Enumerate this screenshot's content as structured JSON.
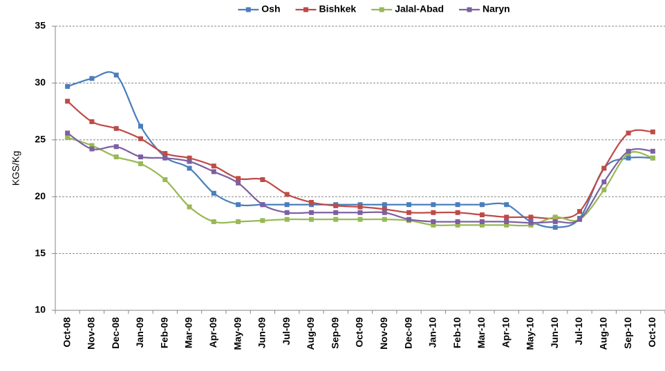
{
  "chart_data": {
    "type": "line",
    "y_label": "KGS/Kg",
    "categories": [
      "Oct-08",
      "Nov-08",
      "Dec-08",
      "Jan-09",
      "Feb-09",
      "Mar-09",
      "Apr-09",
      "May-09",
      "Jun-09",
      "Jul-09",
      "Aug-09",
      "Sep-09",
      "Oct-09",
      "Nov-09",
      "Dec-09",
      "Jan-10",
      "Feb-10",
      "Mar-10",
      "Apr-10",
      "May-10",
      "Jun-10",
      "Jul-10",
      "Aug-10",
      "Sep-10",
      "Oct-10"
    ],
    "series": [
      {
        "name": "Osh",
        "color": "#4a7ebb",
        "values": [
          29.7,
          30.4,
          30.7,
          26.2,
          23.5,
          22.5,
          20.3,
          19.3,
          19.3,
          19.3,
          19.3,
          19.3,
          19.3,
          19.3,
          19.3,
          19.3,
          19.3,
          19.3,
          19.3,
          17.8,
          17.3,
          18.1,
          22.5,
          23.4,
          23.4
        ]
      },
      {
        "name": "Bishkek",
        "color": "#be4b48",
        "values": [
          28.4,
          26.6,
          26.0,
          25.1,
          23.8,
          23.4,
          22.7,
          21.6,
          21.5,
          20.2,
          19.5,
          19.2,
          19.1,
          18.9,
          18.6,
          18.6,
          18.6,
          18.4,
          18.2,
          18.2,
          18.1,
          18.7,
          22.5,
          25.6,
          25.7
        ]
      },
      {
        "name": "Jalal-Abad",
        "color": "#98b954",
        "values": [
          25.2,
          24.5,
          23.5,
          22.9,
          21.5,
          19.1,
          17.8,
          17.8,
          17.9,
          18.0,
          18.0,
          18.0,
          18.0,
          18.0,
          17.9,
          17.5,
          17.5,
          17.5,
          17.5,
          17.5,
          18.2,
          18.0,
          20.6,
          23.8,
          23.4
        ]
      },
      {
        "name": "Naryn",
        "color": "#7d60a0",
        "values": [
          25.6,
          24.2,
          24.4,
          23.5,
          23.4,
          23.1,
          22.2,
          21.2,
          19.3,
          18.6,
          18.6,
          18.6,
          18.6,
          18.6,
          18.0,
          17.8,
          17.8,
          17.8,
          17.8,
          17.7,
          17.8,
          18.0,
          21.3,
          24.0,
          24.0
        ]
      }
    ],
    "ylim": [
      10,
      35
    ],
    "yticks": [
      10,
      15,
      20,
      25,
      30,
      35
    ],
    "grid": true,
    "smooth": true,
    "markers": true,
    "legend": "top"
  }
}
